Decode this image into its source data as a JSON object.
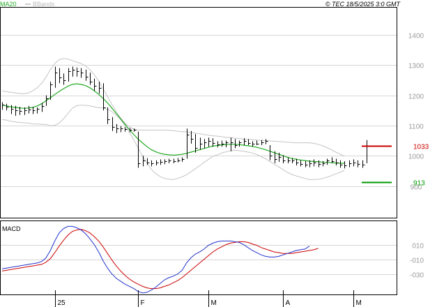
{
  "chart_data": [
    {
      "type": "ohlc",
      "legend": [
        {
          "label": "MA20",
          "color": "#22aa22"
        },
        {
          "label": "BBands",
          "color": "#bbbbbb"
        }
      ],
      "copyright": "© TEC 18/5/2025 3:0 GMT",
      "ylim": [
        795,
        1490
      ],
      "yticks": [
        "1400",
        "1300",
        "1200",
        "1100",
        "1000",
        "900"
      ],
      "ytick_values": [
        1400,
        1300,
        1200,
        1100,
        1000,
        900
      ],
      "x_labels": [
        "25",
        "F",
        "M",
        "A",
        "M"
      ],
      "x_label_index": [
        12,
        31,
        47,
        64,
        80
      ],
      "grid": true,
      "price_bars": [
        {
          "h": 1177,
          "l": 1152,
          "c": 1168
        },
        {
          "h": 1172,
          "l": 1150,
          "c": 1162
        },
        {
          "h": 1168,
          "l": 1138,
          "c": 1155
        },
        {
          "h": 1165,
          "l": 1132,
          "c": 1150
        },
        {
          "h": 1162,
          "l": 1135,
          "c": 1148
        },
        {
          "h": 1160,
          "l": 1135,
          "c": 1150
        },
        {
          "h": 1165,
          "l": 1140,
          "c": 1152
        },
        {
          "h": 1162,
          "l": 1138,
          "c": 1150
        },
        {
          "h": 1160,
          "l": 1140,
          "c": 1155
        },
        {
          "h": 1175,
          "l": 1145,
          "c": 1165
        },
        {
          "h": 1200,
          "l": 1165,
          "c": 1190
        },
        {
          "h": 1245,
          "l": 1185,
          "c": 1235
        },
        {
          "h": 1295,
          "l": 1225,
          "c": 1275
        },
        {
          "h": 1290,
          "l": 1240,
          "c": 1260
        },
        {
          "h": 1272,
          "l": 1235,
          "c": 1250
        },
        {
          "h": 1290,
          "l": 1245,
          "c": 1280
        },
        {
          "h": 1295,
          "l": 1262,
          "c": 1285
        },
        {
          "h": 1292,
          "l": 1262,
          "c": 1280
        },
        {
          "h": 1290,
          "l": 1258,
          "c": 1275
        },
        {
          "h": 1285,
          "l": 1248,
          "c": 1262
        },
        {
          "h": 1275,
          "l": 1235,
          "c": 1245
        },
        {
          "h": 1255,
          "l": 1215,
          "c": 1232
        },
        {
          "h": 1245,
          "l": 1205,
          "c": 1225
        },
        {
          "h": 1240,
          "l": 1150,
          "c": 1160
        },
        {
          "h": 1160,
          "l": 1105,
          "c": 1120
        },
        {
          "h": 1128,
          "l": 1082,
          "c": 1095
        },
        {
          "h": 1105,
          "l": 1075,
          "c": 1090
        },
        {
          "h": 1098,
          "l": 1078,
          "c": 1090
        },
        {
          "h": 1095,
          "l": 1080,
          "c": 1088
        },
        {
          "h": 1092,
          "l": 1078,
          "c": 1085
        },
        {
          "h": 1090,
          "l": 1080,
          "c": 1085
        },
        {
          "h": 1080,
          "l": 960,
          "c": 975
        },
        {
          "h": 1000,
          "l": 965,
          "c": 985
        },
        {
          "h": 992,
          "l": 970,
          "c": 978
        },
        {
          "h": 985,
          "l": 965,
          "c": 975
        },
        {
          "h": 985,
          "l": 968,
          "c": 978
        },
        {
          "h": 988,
          "l": 970,
          "c": 980
        },
        {
          "h": 988,
          "l": 972,
          "c": 982
        },
        {
          "h": 990,
          "l": 975,
          "c": 985
        },
        {
          "h": 990,
          "l": 975,
          "c": 982
        },
        {
          "h": 992,
          "l": 978,
          "c": 985
        },
        {
          "h": 995,
          "l": 980,
          "c": 988
        },
        {
          "h": 1090,
          "l": 990,
          "c": 1070
        },
        {
          "h": 1082,
          "l": 1040,
          "c": 1055
        },
        {
          "h": 1072,
          "l": 1010,
          "c": 1025
        },
        {
          "h": 1060,
          "l": 1020,
          "c": 1040
        },
        {
          "h": 1055,
          "l": 1025,
          "c": 1045
        },
        {
          "h": 1060,
          "l": 1030,
          "c": 1050
        },
        {
          "h": 1058,
          "l": 1030,
          "c": 1042
        },
        {
          "h": 1048,
          "l": 1028,
          "c": 1038
        },
        {
          "h": 1050,
          "l": 1030,
          "c": 1040
        },
        {
          "h": 1050,
          "l": 1028,
          "c": 1045
        },
        {
          "h": 1060,
          "l": 1015,
          "c": 1045
        },
        {
          "h": 1055,
          "l": 1025,
          "c": 1035
        },
        {
          "h": 1050,
          "l": 1030,
          "c": 1045
        },
        {
          "h": 1058,
          "l": 1035,
          "c": 1050
        },
        {
          "h": 1055,
          "l": 1035,
          "c": 1042
        },
        {
          "h": 1048,
          "l": 1030,
          "c": 1040
        },
        {
          "h": 1050,
          "l": 1035,
          "c": 1040
        },
        {
          "h": 1052,
          "l": 1035,
          "c": 1045
        },
        {
          "h": 1055,
          "l": 1038,
          "c": 1048
        },
        {
          "h": 1035,
          "l": 985,
          "c": 1000
        },
        {
          "h": 1015,
          "l": 975,
          "c": 990
        },
        {
          "h": 1010,
          "l": 980,
          "c": 995
        },
        {
          "h": 1002,
          "l": 975,
          "c": 985
        },
        {
          "h": 995,
          "l": 975,
          "c": 985
        },
        {
          "h": 992,
          "l": 975,
          "c": 985
        },
        {
          "h": 990,
          "l": 968,
          "c": 978
        },
        {
          "h": 985,
          "l": 965,
          "c": 972
        },
        {
          "h": 982,
          "l": 962,
          "c": 970
        },
        {
          "h": 985,
          "l": 962,
          "c": 975
        },
        {
          "h": 988,
          "l": 965,
          "c": 978
        },
        {
          "h": 985,
          "l": 962,
          "c": 972
        },
        {
          "h": 982,
          "l": 965,
          "c": 975
        },
        {
          "h": 990,
          "l": 970,
          "c": 985
        },
        {
          "h": 995,
          "l": 975,
          "c": 982
        },
        {
          "h": 990,
          "l": 968,
          "c": 978
        },
        {
          "h": 985,
          "l": 960,
          "c": 970
        },
        {
          "h": 982,
          "l": 958,
          "c": 968
        },
        {
          "h": 985,
          "l": 962,
          "c": 975
        },
        {
          "h": 988,
          "l": 965,
          "c": 978
        },
        {
          "h": 985,
          "l": 962,
          "c": 972
        },
        {
          "h": 985,
          "l": 960,
          "c": 970
        },
        {
          "h": 1052,
          "l": 975,
          "c": 1033
        }
      ],
      "ma20": [
        1168,
        1165,
        1162,
        1160,
        1158,
        1157,
        1158,
        1160,
        1165,
        1172,
        1182,
        1192,
        1203,
        1213,
        1222,
        1230,
        1236,
        1238,
        1236,
        1232,
        1225,
        1215,
        1203,
        1190,
        1175,
        1158,
        1140,
        1122,
        1104,
        1086,
        1070,
        1055,
        1042,
        1030,
        1020,
        1013,
        1008,
        1005,
        1003,
        1002,
        1003,
        1005,
        1008,
        1012,
        1016,
        1020,
        1024,
        1028,
        1032,
        1034,
        1036,
        1037,
        1038,
        1038,
        1037,
        1035,
        1033,
        1031,
        1028,
        1024,
        1020,
        1015,
        1010,
        1005,
        1000,
        995,
        991,
        988,
        986,
        984,
        982,
        981,
        980,
        979,
        978,
        977,
        976,
        975,
        975
      ],
      "bb_upper": [
        1215,
        1212,
        1210,
        1208,
        1206,
        1205,
        1208,
        1215,
        1225,
        1240,
        1260,
        1285,
        1305,
        1318,
        1322,
        1320,
        1315,
        1310,
        1305,
        1297,
        1285,
        1268,
        1247,
        1222,
        1196,
        1170,
        1146,
        1125,
        1108,
        1095,
        1088,
        1085,
        1085,
        1085,
        1085,
        1085,
        1085,
        1085,
        1084,
        1083,
        1081,
        1080,
        1079,
        1077,
        1075,
        1073,
        1070,
        1068,
        1066,
        1065,
        1063,
        1061,
        1060,
        1058,
        1057,
        1055,
        1054,
        1053,
        1052,
        1051,
        1050,
        1049,
        1048,
        1047,
        1046,
        1045,
        1044,
        1043,
        1043,
        1043,
        1043,
        1041,
        1038,
        1033,
        1027,
        1020,
        1012,
        1005,
        998
      ],
      "bb_lower": [
        1120,
        1118,
        1114,
        1112,
        1110,
        1109,
        1108,
        1105,
        1105,
        1104,
        1104,
        1099,
        1101,
        1108,
        1122,
        1140,
        1157,
        1166,
        1167,
        1167,
        1165,
        1162,
        1159,
        1158,
        1154,
        1146,
        1134,
        1119,
        1100,
        1077,
        1052,
        1025,
        999,
        975,
        955,
        941,
        931,
        925,
        922,
        921,
        925,
        930,
        937,
        947,
        957,
        967,
        978,
        988,
        998,
        1003,
        1009,
        1013,
        1016,
        1018,
        1017,
        1015,
        1012,
        1009,
        1004,
        997,
        990,
        981,
        972,
        963,
        954,
        945,
        938,
        933,
        929,
        925,
        921,
        921,
        922,
        925,
        929,
        934,
        940,
        945,
        952
      ],
      "macd_panel": {
        "label": "MACD",
        "yticks": [
          "010",
          "-010",
          "-030"
        ],
        "ytick_values": [
          10,
          -10,
          -30
        ],
        "ylim": [
          -58,
          42
        ],
        "macd": [
          -23,
          -22,
          -21,
          -20,
          -19,
          -18,
          -17,
          -16,
          -15,
          -13,
          -8,
          2,
          15,
          26,
          32,
          35,
          35,
          33,
          30,
          25,
          18,
          10,
          0,
          -12,
          -22,
          -30,
          -36,
          -40,
          -44,
          -47,
          -50,
          -54,
          -56,
          -55,
          -52,
          -48,
          -43,
          -38,
          -35,
          -33,
          -30,
          -25,
          -15,
          -8,
          -3,
          0,
          4,
          9,
          12,
          14,
          15,
          15,
          15,
          14,
          13,
          10,
          6,
          2,
          -1,
          -4,
          -6,
          -7,
          -7,
          -6,
          -4,
          -2,
          0,
          2,
          3,
          4,
          8
        ],
        "signal": [
          -26,
          -25,
          -24,
          -23,
          -22,
          -21,
          -20,
          -19,
          -18,
          -17,
          -14,
          -9,
          -1,
          8,
          16,
          23,
          28,
          30,
          31,
          29,
          26,
          21,
          15,
          7,
          -2,
          -11,
          -19,
          -26,
          -32,
          -37,
          -41,
          -44,
          -47,
          -49,
          -50,
          -50,
          -49,
          -47,
          -45,
          -42,
          -39,
          -35,
          -30,
          -25,
          -20,
          -15,
          -10,
          -5,
          0,
          4,
          7,
          10,
          12,
          13,
          14,
          14,
          13,
          11,
          9,
          6,
          4,
          2,
          0,
          -1,
          -2,
          -2,
          -2,
          -1,
          0,
          1,
          2,
          3,
          5
        ]
      },
      "markers": [
        {
          "label": "1033",
          "value": 1033,
          "color": "#cc0000"
        },
        {
          "label": "913",
          "value": 913,
          "color": "#009900"
        }
      ]
    }
  ]
}
